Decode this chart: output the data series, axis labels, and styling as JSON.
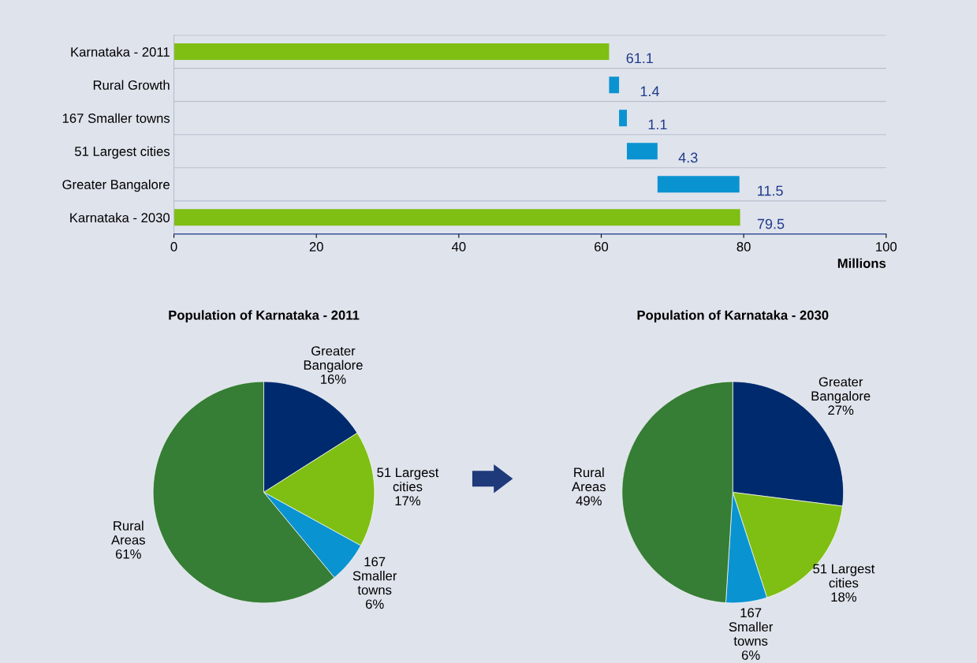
{
  "chart_data": [
    {
      "type": "bar",
      "orientation": "horizontal",
      "xlabel": "Millions",
      "categories": [
        "Karnataka - 2011",
        "Rural Growth",
        "167 Smaller towns",
        "51 Largest cities",
        "Greater Bangalore",
        "Karnataka - 2030"
      ],
      "values": [
        61.1,
        1.4,
        1.1,
        4.3,
        11.5,
        79.5
      ],
      "base": [
        0,
        61.1,
        62.5,
        63.6,
        67.9,
        0
      ],
      "colors": [
        "#7fbe13",
        "#0a93d1",
        "#0a93d1",
        "#0a93d1",
        "#0a93d1",
        "#7fbe13"
      ],
      "data_labels": true,
      "xlim": [
        0,
        100
      ],
      "xticks": [
        0,
        20,
        40,
        60,
        80,
        100
      ]
    },
    {
      "type": "pie",
      "title": "Population of Karnataka - 2011",
      "categories": [
        "Greater\nBangalore",
        "51 Largest\ncities",
        "167\nSmaller\ntowns",
        "Rural\nAreas"
      ],
      "values": [
        16,
        17,
        6,
        61
      ],
      "value_labels": [
        "16%",
        "17%",
        "6%",
        "61%"
      ],
      "colors": [
        "#002a6e",
        "#7fbe13",
        "#0a93d1",
        "#367d36"
      ]
    },
    {
      "type": "pie",
      "title": "Population of Karnataka - 2030",
      "categories": [
        "Greater\nBangalore",
        "51 Largest\ncities",
        "167\nSmaller\ntowns",
        "Rural\nAreas"
      ],
      "values": [
        27,
        18,
        6,
        49
      ],
      "value_labels": [
        "27%",
        "18%",
        "6%",
        "49%"
      ],
      "colors": [
        "#002a6e",
        "#7fbe13",
        "#0a93d1",
        "#367d36"
      ]
    }
  ]
}
